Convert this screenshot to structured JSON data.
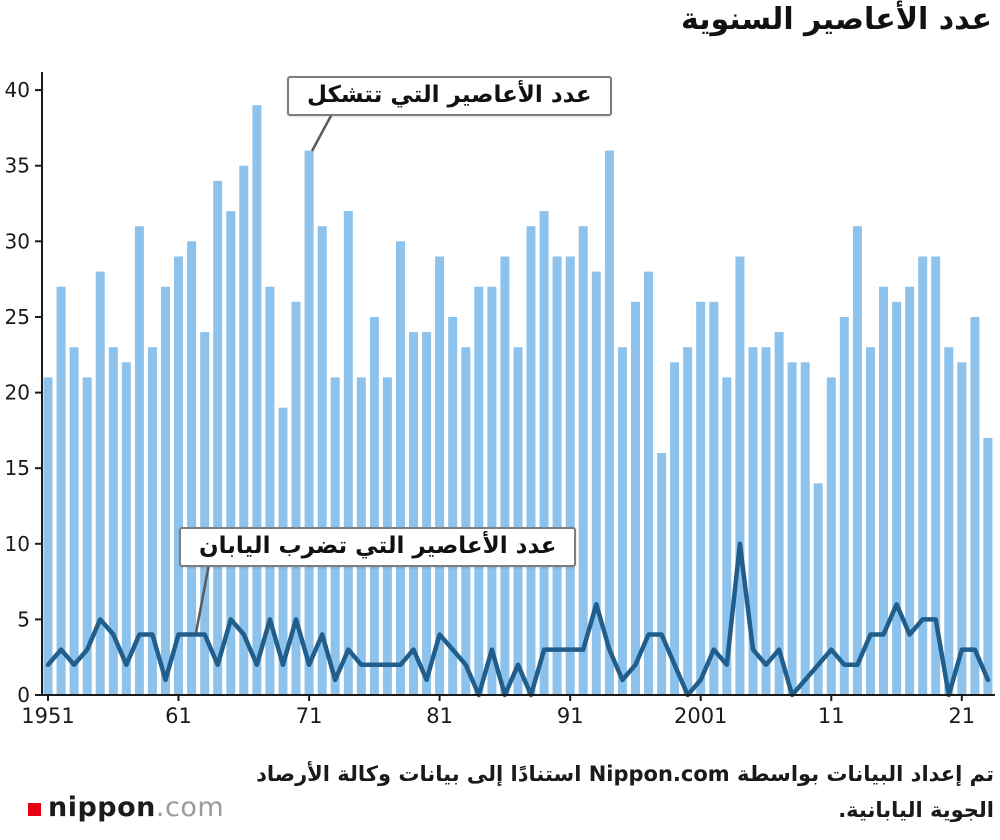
{
  "title": "عدد الأعاصير السنوية",
  "annotations": {
    "formed": "عدد الأعاصير التي تتشكل",
    "hit": "عدد الأعاصير التي تضرب اليابان"
  },
  "footer": {
    "credit_line1": "تم إعداد البيانات بواسطة Nippon.com استنادًا إلى بيانات وكالة الأرصاد",
    "credit_line2": "الجوية اليابانية."
  },
  "logo": {
    "name": "nippon",
    "tld": ".com",
    "square_color": "#e60012"
  },
  "colors": {
    "bar": "#8CC2EB",
    "line": "#215E8C",
    "axis": "#1a1a1a",
    "callout_border": "#7d7d7d",
    "leader": "#5a5a5a"
  },
  "chart_data": {
    "type": "bar",
    "x_start": 1951,
    "x_end": 2023,
    "x_ticks": [
      "1951",
      "61",
      "71",
      "81",
      "91",
      "2001",
      "11",
      "21"
    ],
    "x_tick_positions": [
      0,
      10,
      20,
      30,
      40,
      50,
      60,
      70
    ],
    "y_ticks": [
      0,
      5,
      10,
      15,
      20,
      25,
      30,
      35,
      40
    ],
    "ylim": [
      0,
      41
    ],
    "grid": false,
    "legend": "callout-annotations",
    "series": [
      {
        "name": "typhoons_formed",
        "label": "عدد الأعاصير التي تتشكل",
        "type": "bar",
        "values": [
          21,
          27,
          23,
          21,
          28,
          23,
          22,
          31,
          23,
          27,
          29,
          30,
          24,
          34,
          32,
          35,
          39,
          27,
          19,
          26,
          36,
          31,
          21,
          32,
          21,
          25,
          21,
          30,
          24,
          24,
          29,
          25,
          23,
          27,
          27,
          29,
          23,
          31,
          32,
          29,
          29,
          31,
          28,
          36,
          23,
          26,
          28,
          16,
          22,
          23,
          26,
          26,
          21,
          29,
          23,
          23,
          24,
          22,
          22,
          14,
          21,
          25,
          31,
          23,
          27,
          26,
          27,
          29,
          29,
          23,
          22,
          25,
          17
        ]
      },
      {
        "name": "typhoons_hit_japan",
        "label": "عدد الأعاصير التي تضرب اليابان",
        "type": "line",
        "values": [
          2,
          3,
          2,
          3,
          5,
          4,
          2,
          4,
          4,
          1,
          4,
          4,
          4,
          2,
          5,
          4,
          2,
          5,
          2,
          5,
          2,
          4,
          1,
          3,
          2,
          2,
          2,
          2,
          3,
          1,
          4,
          3,
          2,
          0,
          3,
          0,
          2,
          0,
          3,
          3,
          3,
          3,
          6,
          3,
          1,
          2,
          4,
          4,
          2,
          0,
          1,
          3,
          2,
          10,
          3,
          2,
          3,
          0,
          1,
          2,
          3,
          2,
          2,
          4,
          4,
          6,
          4,
          5,
          5,
          0,
          3,
          3,
          1
        ]
      }
    ]
  }
}
